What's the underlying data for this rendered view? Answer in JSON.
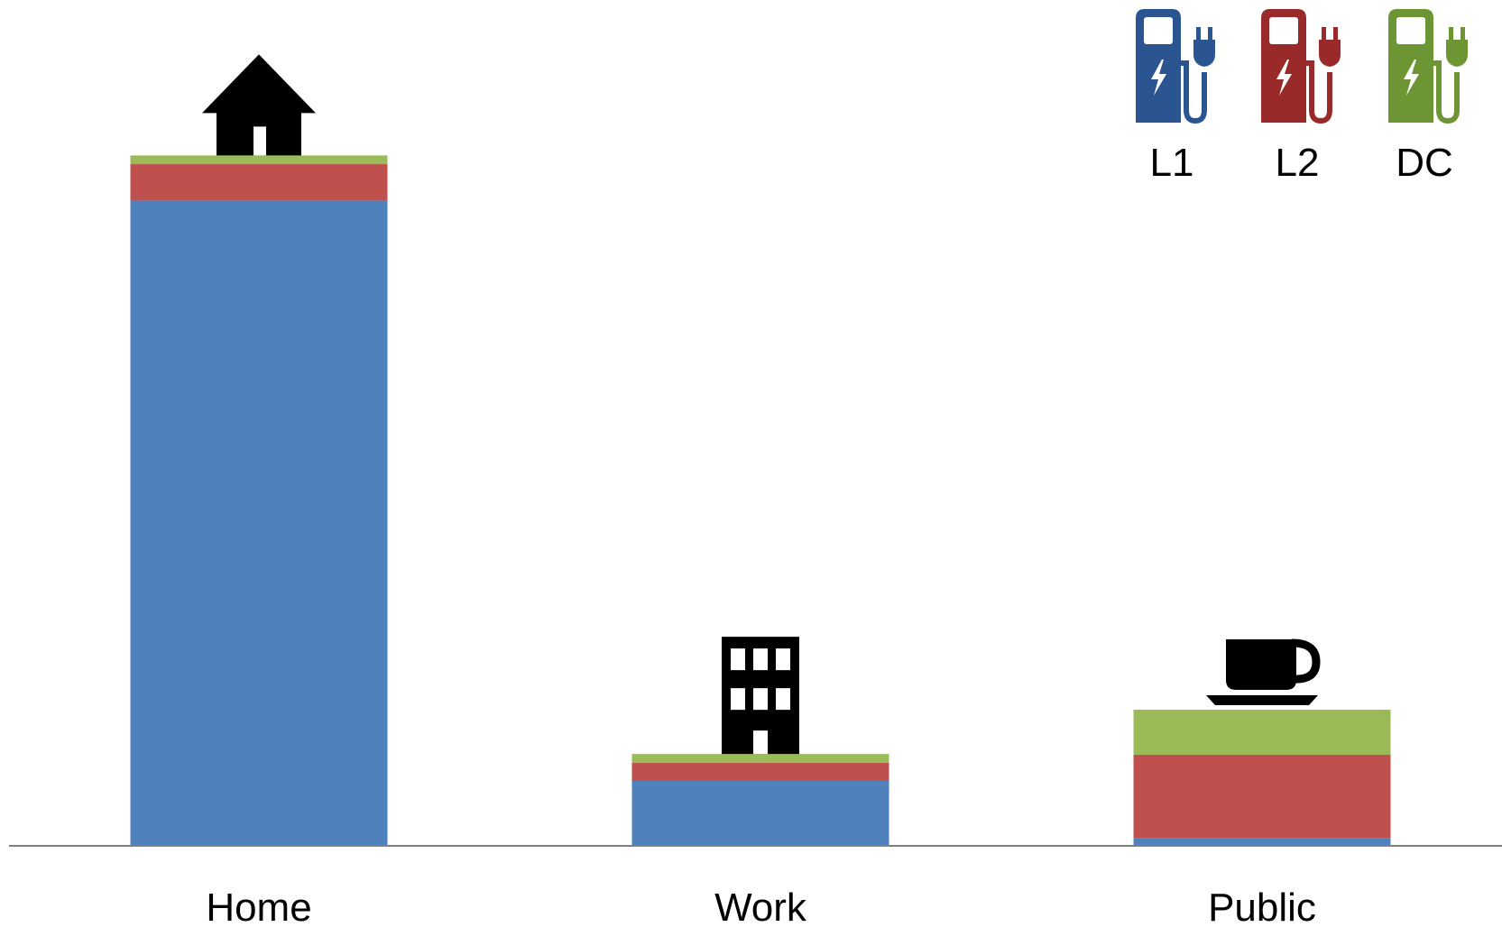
{
  "chart_data": {
    "type": "bar",
    "stacked": true,
    "categories": [
      "Home",
      "Work",
      "Public"
    ],
    "category_icons": [
      "house-icon",
      "office-building-icon",
      "coffee-cup-icon"
    ],
    "series": [
      {
        "name": "L1",
        "color": "#4f81bd",
        "icon": "ev-charger-icon",
        "values": [
          81.5,
          8.2,
          1.0
        ]
      },
      {
        "name": "L2",
        "color": "#c0504d",
        "icon": "ev-charger-icon",
        "values": [
          4.6,
          2.3,
          10.5
        ]
      },
      {
        "name": "DC",
        "color": "#9bbb59",
        "icon": "ev-charger-icon",
        "values": [
          1.1,
          1.1,
          5.7
        ]
      }
    ],
    "legend_icon_colors": [
      "#2a5591",
      "#9a2a29",
      "#6e9534"
    ],
    "ylim": [
      0,
      100
    ],
    "axes_visible": false,
    "grid": false,
    "legend_position": "top-right",
    "title": "",
    "xlabel": "",
    "ylabel": ""
  }
}
